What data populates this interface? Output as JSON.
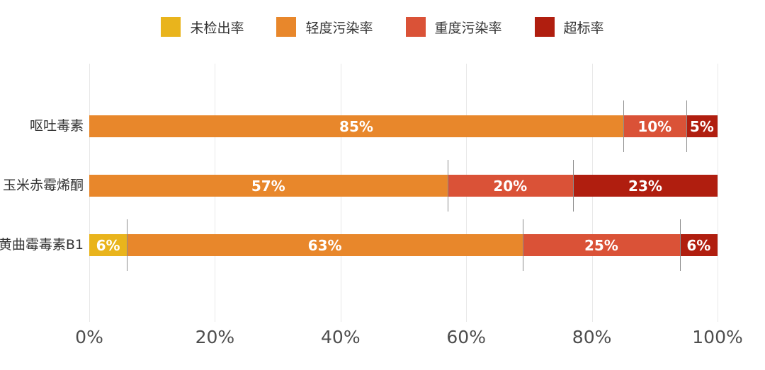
{
  "chart_data": {
    "type": "bar",
    "variant": "horizontal_stacked",
    "title": "",
    "categories": [
      "呕吐毒素",
      "玉米赤霉烯酮",
      "黄曲霉毒素B1"
    ],
    "series": [
      {
        "name": "未检出率",
        "color": "#E9B41C",
        "values": [
          0,
          0,
          6
        ]
      },
      {
        "name": "轻度污染率",
        "color": "#E8872B",
        "values": [
          85,
          57,
          63
        ]
      },
      {
        "name": "重度污染率",
        "color": "#DA5237",
        "values": [
          10,
          20,
          25
        ]
      },
      {
        "name": "超标率",
        "color": "#B01E0F",
        "values": [
          5,
          23,
          6
        ]
      }
    ],
    "data_labels": {
      "format": "{value}%",
      "color": "#ffffff",
      "hide_zero": true
    },
    "x_axis": {
      "min": 0,
      "max": 100,
      "tick_values": [
        0,
        20,
        40,
        60,
        80,
        100
      ],
      "tick_labels": [
        "0%",
        "20%",
        "40%",
        "60%",
        "80%",
        "100%"
      ]
    },
    "legend": {
      "position": "top"
    },
    "grid": {
      "vertical": true,
      "color": "#e8e8e8"
    },
    "segment_divider_lines": {
      "show": true,
      "color": "#8c8c8c"
    }
  }
}
